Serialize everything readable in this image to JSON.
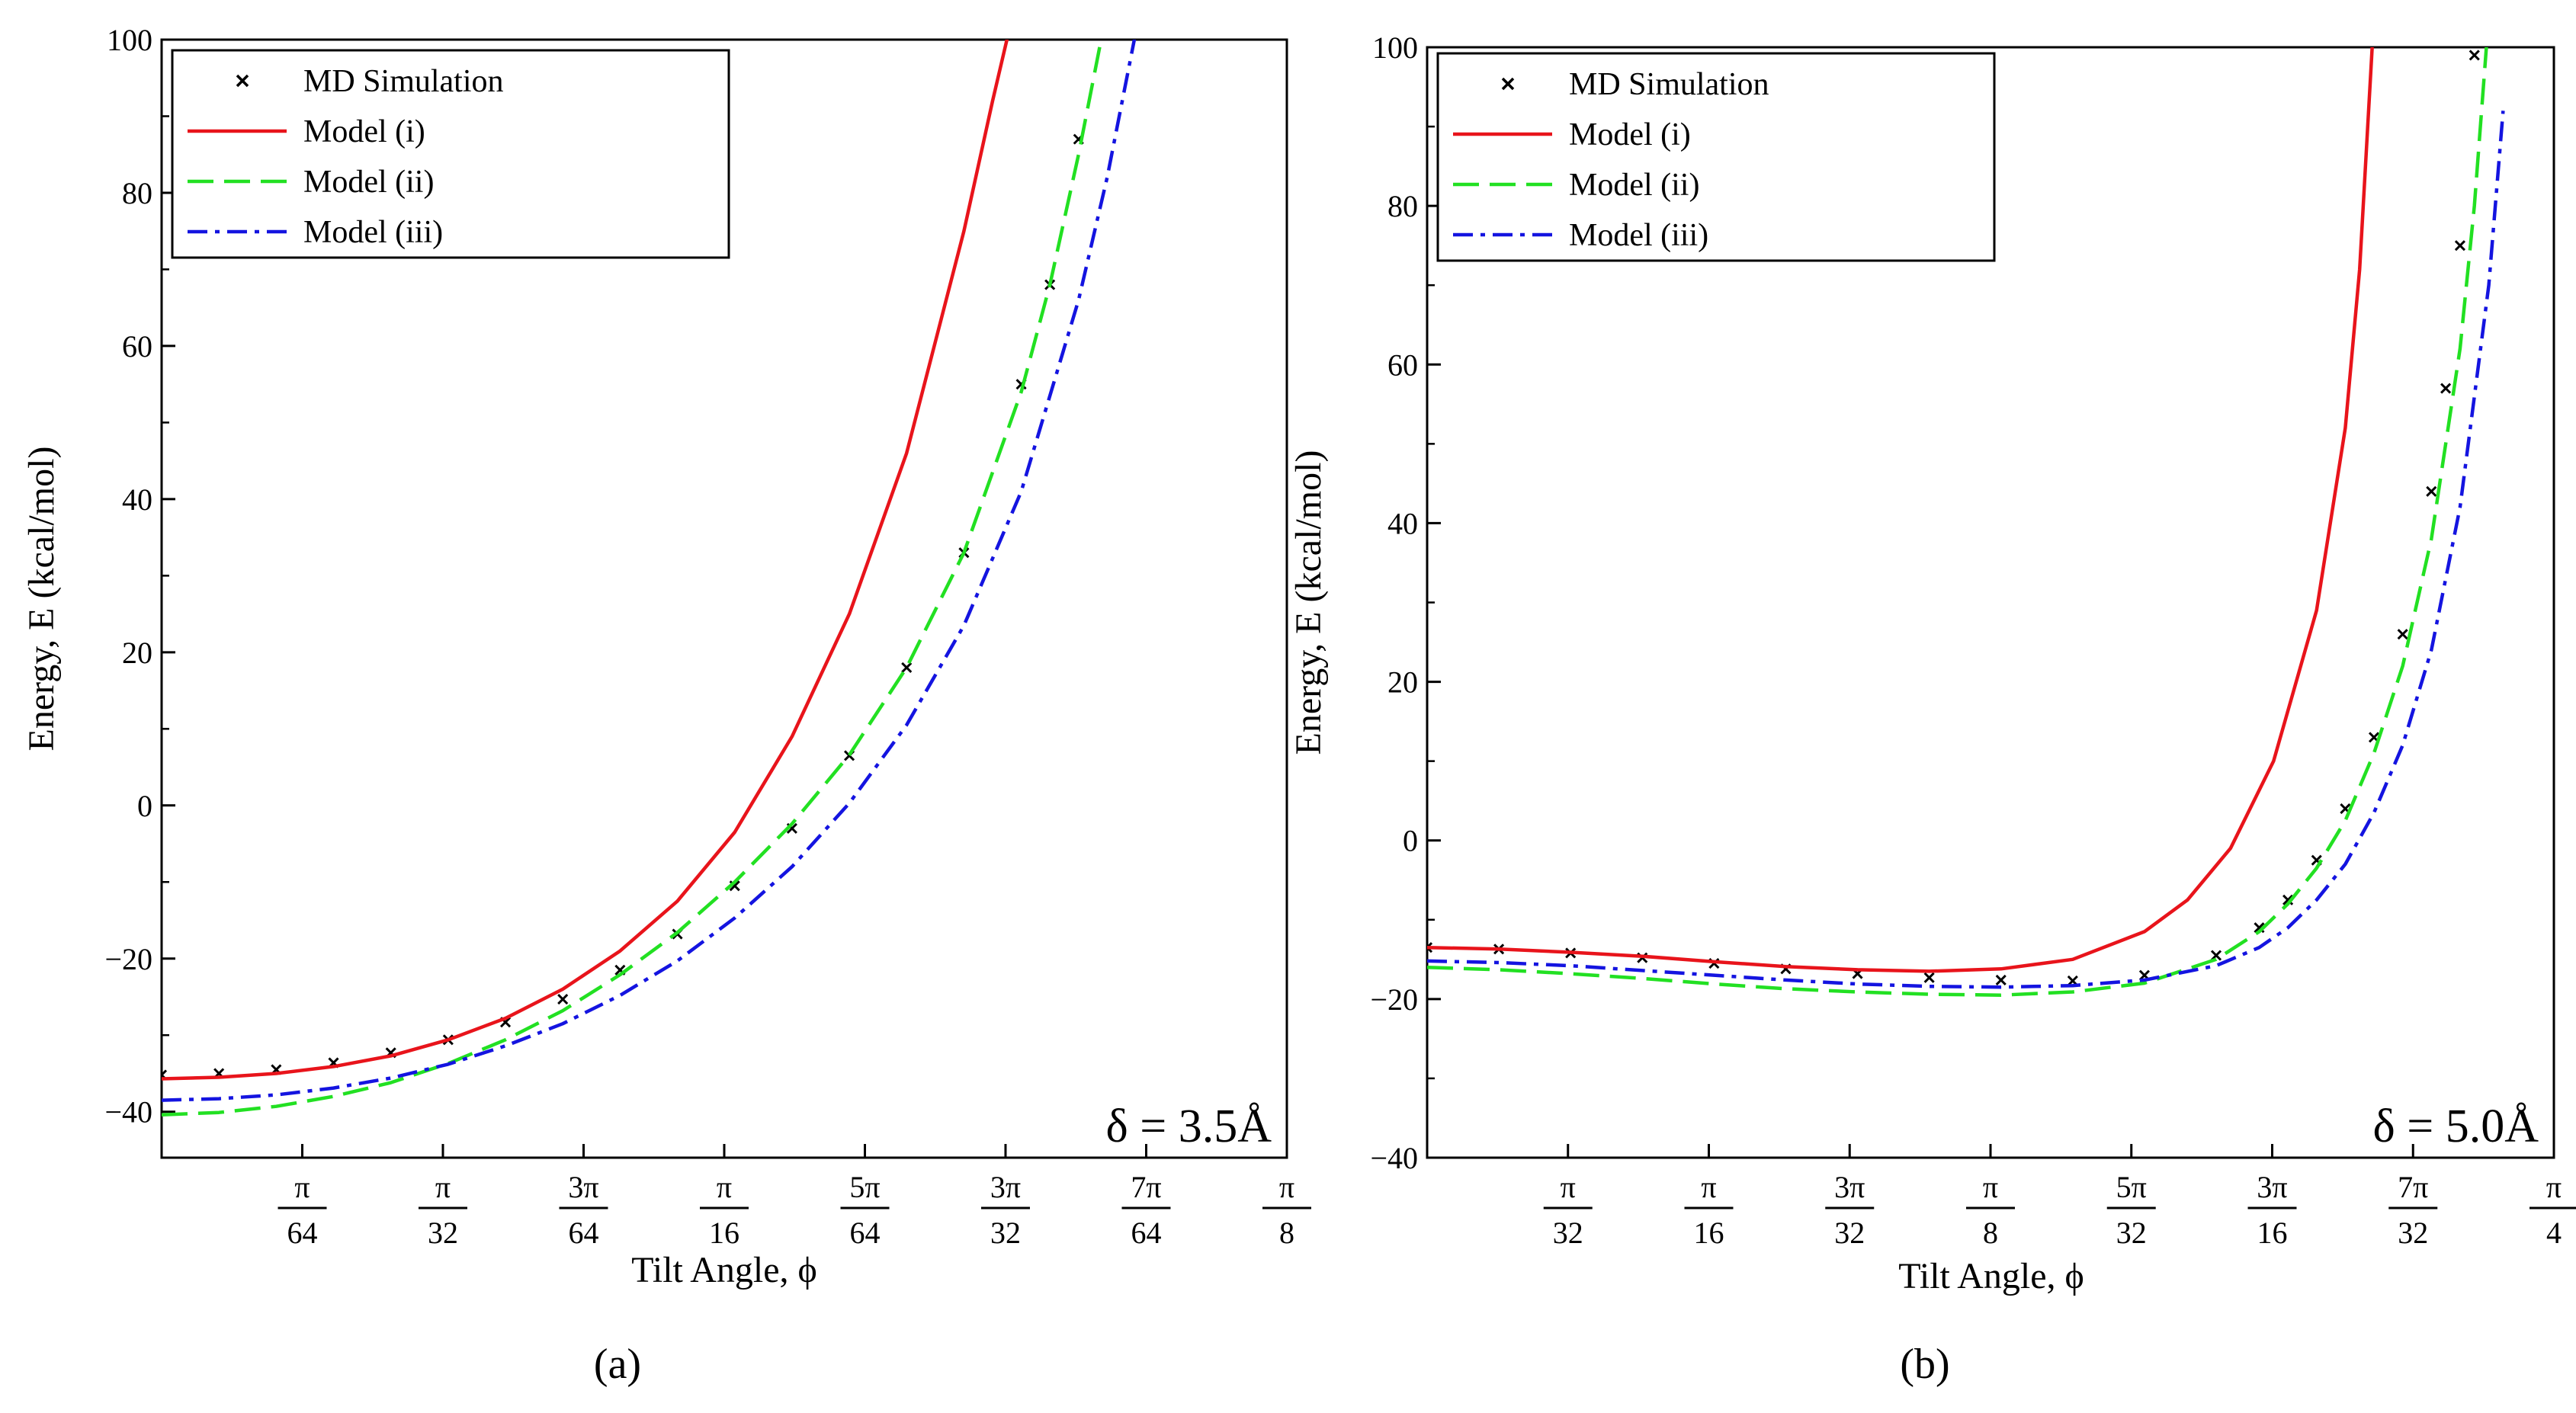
{
  "figure": {
    "captions": [
      "(a)",
      "(b)"
    ]
  },
  "series_styles": {
    "MD Simulation": {
      "color": "#000000",
      "marker": "x"
    },
    "Model (i)": {
      "color": "#e8141b",
      "dash": "solid"
    },
    "Model (ii)": {
      "color": "#22e022",
      "dash": "dashed"
    },
    "Model (iii)": {
      "color": "#1414e0",
      "dash": "dashdot"
    }
  },
  "chart_data": [
    {
      "type": "line",
      "panel": "(a)",
      "xlabel": "Tilt Angle, ϕ",
      "ylabel": "Energy, E (kcal/mol)",
      "annotation": "δ = 3.5Å",
      "xlim": [
        0,
        0.3927
      ],
      "ylim": [
        -46,
        100
      ],
      "yticks": [
        -40,
        -20,
        0,
        20,
        40,
        60,
        80,
        100
      ],
      "yminor": [
        -30,
        -10,
        10,
        30,
        50,
        70,
        90
      ],
      "xticks": [
        {
          "value": 0.04909,
          "num": "π",
          "den": "64"
        },
        {
          "value": 0.09817,
          "num": "π",
          "den": "32"
        },
        {
          "value": 0.14726,
          "num": "3π",
          "den": "64"
        },
        {
          "value": 0.19635,
          "num": "π",
          "den": "16"
        },
        {
          "value": 0.24544,
          "num": "5π",
          "den": "64"
        },
        {
          "value": 0.29452,
          "num": "3π",
          "den": "32"
        },
        {
          "value": 0.34361,
          "num": "7π",
          "den": "64"
        },
        {
          "value": 0.3927,
          "num": "π",
          "den": "8"
        }
      ],
      "legend": [
        "MD Simulation",
        "Model (i)",
        "Model (ii)",
        "Model (iii)"
      ],
      "series": [
        {
          "name": "MD Simulation",
          "kind": "scatter",
          "x": [
            0,
            0.02,
            0.04,
            0.06,
            0.08,
            0.1,
            0.12,
            0.14,
            0.16,
            0.18,
            0.2,
            0.22,
            0.24,
            0.26,
            0.28,
            0.3,
            0.31,
            0.32
          ],
          "y": [
            -35.2,
            -35.0,
            -34.5,
            -33.6,
            -32.3,
            -30.6,
            -28.3,
            -25.3,
            -21.5,
            -16.8,
            -10.5,
            -3.0,
            6.5,
            18.0,
            33.0,
            55.0,
            68.0,
            87.0
          ]
        },
        {
          "name": "Model (i)",
          "kind": "line",
          "x": [
            0,
            0.02,
            0.04,
            0.06,
            0.08,
            0.1,
            0.12,
            0.14,
            0.16,
            0.18,
            0.2,
            0.22,
            0.24,
            0.26,
            0.28,
            0.29,
            0.3
          ],
          "y": [
            -35.7,
            -35.5,
            -35.0,
            -34.1,
            -32.7,
            -30.6,
            -27.8,
            -24.0,
            -19.0,
            -12.5,
            -3.5,
            9.0,
            25.0,
            46.0,
            75.0,
            92.0,
            108.0
          ]
        },
        {
          "name": "Model (ii)",
          "kind": "line",
          "x": [
            0,
            0.02,
            0.04,
            0.06,
            0.08,
            0.1,
            0.12,
            0.14,
            0.16,
            0.18,
            0.2,
            0.22,
            0.24,
            0.26,
            0.28,
            0.3,
            0.31,
            0.32,
            0.33
          ],
          "y": [
            -40.4,
            -40.1,
            -39.3,
            -38.0,
            -36.2,
            -33.7,
            -30.6,
            -26.8,
            -22.1,
            -16.6,
            -10.0,
            -2.4,
            6.6,
            18.0,
            33.0,
            54.0,
            68.0,
            85.0,
            104.0
          ]
        },
        {
          "name": "Model (iii)",
          "kind": "line",
          "x": [
            0,
            0.02,
            0.04,
            0.06,
            0.08,
            0.1,
            0.12,
            0.14,
            0.16,
            0.18,
            0.2,
            0.22,
            0.24,
            0.26,
            0.28,
            0.3,
            0.32,
            0.33,
            0.34
          ],
          "y": [
            -38.5,
            -38.3,
            -37.8,
            -36.9,
            -35.6,
            -33.8,
            -31.4,
            -28.5,
            -24.8,
            -20.3,
            -14.7,
            -8.0,
            0.3,
            10.5,
            23.5,
            41.0,
            66.0,
            82.0,
            101.0
          ]
        }
      ]
    },
    {
      "type": "line",
      "panel": "(b)",
      "xlabel": "Tilt Angle, ϕ",
      "ylabel": "Energy, E (kcal/mol)",
      "annotation": "δ = 5.0Å",
      "xlim": [
        0,
        0.7854
      ],
      "ylim": [
        -40,
        100
      ],
      "yticks": [
        -40,
        -20,
        0,
        20,
        40,
        60,
        80,
        100
      ],
      "yminor": [
        -30,
        -10,
        10,
        30,
        50,
        70,
        90
      ],
      "xticks": [
        {
          "value": 0.09817,
          "num": "π",
          "den": "32"
        },
        {
          "value": 0.19635,
          "num": "π",
          "den": "16"
        },
        {
          "value": 0.29452,
          "num": "3π",
          "den": "32"
        },
        {
          "value": 0.3927,
          "num": "π",
          "den": "8"
        },
        {
          "value": 0.49087,
          "num": "5π",
          "den": "32"
        },
        {
          "value": 0.58905,
          "num": "3π",
          "den": "16"
        },
        {
          "value": 0.68722,
          "num": "7π",
          "den": "32"
        },
        {
          "value": 0.7854,
          "num": "π",
          "den": "4"
        }
      ],
      "legend": [
        "MD Simulation",
        "Model (i)",
        "Model (ii)",
        "Model (iii)"
      ],
      "series": [
        {
          "name": "MD Simulation",
          "kind": "scatter",
          "x": [
            0,
            0.05,
            0.1,
            0.15,
            0.2,
            0.25,
            0.3,
            0.35,
            0.4,
            0.45,
            0.5,
            0.55,
            0.58,
            0.6,
            0.62,
            0.64,
            0.66,
            0.68,
            0.7,
            0.71,
            0.72,
            0.73
          ],
          "y": [
            -13.5,
            -13.7,
            -14.2,
            -14.8,
            -15.5,
            -16.2,
            -16.8,
            -17.3,
            -17.6,
            -17.7,
            -17.0,
            -14.5,
            -11.0,
            -7.5,
            -2.5,
            4.0,
            13.0,
            26.0,
            44.0,
            57.0,
            75.0,
            99.0
          ]
        },
        {
          "name": "Model (i)",
          "kind": "line",
          "x": [
            0,
            0.05,
            0.1,
            0.15,
            0.2,
            0.25,
            0.3,
            0.35,
            0.4,
            0.45,
            0.5,
            0.53,
            0.56,
            0.59,
            0.62,
            0.64,
            0.65,
            0.66
          ],
          "y": [
            -13.5,
            -13.7,
            -14.1,
            -14.6,
            -15.3,
            -15.9,
            -16.3,
            -16.5,
            -16.2,
            -15.0,
            -11.5,
            -7.5,
            -1.0,
            10.0,
            29.0,
            52.0,
            72.0,
            104.0
          ]
        },
        {
          "name": "Model (ii)",
          "kind": "line",
          "x": [
            0,
            0.05,
            0.1,
            0.15,
            0.2,
            0.25,
            0.3,
            0.35,
            0.4,
            0.45,
            0.5,
            0.55,
            0.58,
            0.6,
            0.62,
            0.64,
            0.66,
            0.68,
            0.7,
            0.72,
            0.73,
            0.74
          ],
          "y": [
            -16.0,
            -16.3,
            -16.8,
            -17.4,
            -18.1,
            -18.7,
            -19.1,
            -19.4,
            -19.5,
            -19.1,
            -18.0,
            -15.0,
            -11.5,
            -8.0,
            -3.5,
            2.5,
            11.0,
            22.0,
            38.0,
            62.0,
            80.0,
            104.0
          ]
        },
        {
          "name": "Model (iii)",
          "kind": "line",
          "x": [
            0,
            0.05,
            0.1,
            0.15,
            0.2,
            0.25,
            0.3,
            0.35,
            0.4,
            0.45,
            0.5,
            0.55,
            0.58,
            0.6,
            0.62,
            0.64,
            0.66,
            0.68,
            0.7,
            0.72,
            0.74,
            0.75
          ],
          "y": [
            -15.2,
            -15.4,
            -15.8,
            -16.4,
            -17.0,
            -17.6,
            -18.1,
            -18.4,
            -18.5,
            -18.3,
            -17.6,
            -15.8,
            -13.5,
            -11.0,
            -7.5,
            -3.0,
            3.5,
            12.0,
            24.0,
            42.0,
            70.0,
            92.0
          ]
        }
      ]
    }
  ]
}
